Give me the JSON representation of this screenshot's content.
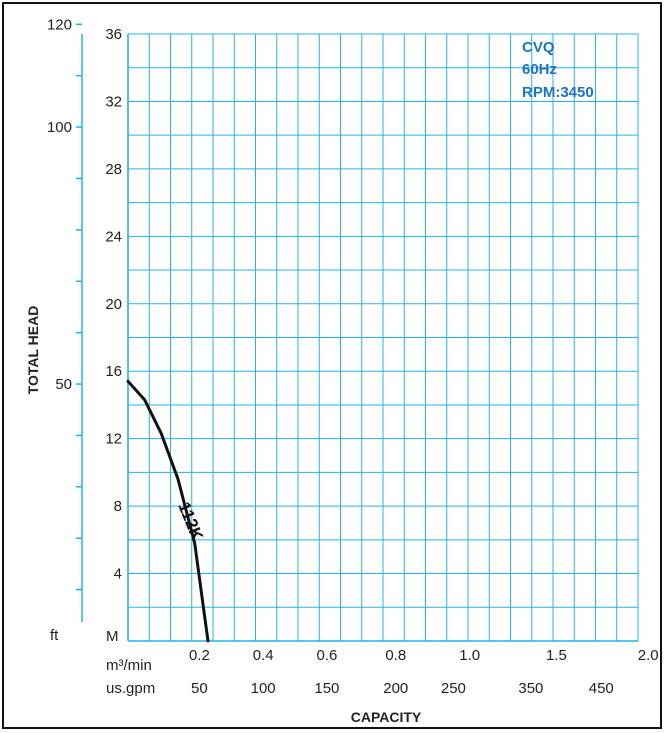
{
  "chart_data": {
    "type": "line",
    "info": {
      "model": "CVQ",
      "frequency": "60Hz",
      "rpm": "RPM:3450",
      "color": "#1a73c8"
    },
    "grid_color": "#23b3e8",
    "grid": true,
    "ylabel": "TOTAL HEAD",
    "xlabel": "CAPACITY",
    "y_unit_m": "M",
    "y_unit_ft": "ft",
    "x_unit_m3": "m³/min",
    "x_unit_gpm": "us.gpm",
    "ylim_m": [
      0,
      36
    ],
    "y_ticks_m": [
      "4",
      "8",
      "12",
      "16",
      "20",
      "24",
      "28",
      "32",
      "36"
    ],
    "y_ticks_ft": [
      "50",
      "100",
      "120"
    ],
    "xlim_m3": [
      0,
      2.0
    ],
    "x_ticks_m3": [
      "0.2",
      "0.4",
      "0.6",
      "0.8",
      "1.0",
      "1.5",
      "2.0"
    ],
    "x_ticks_gpm": [
      "50",
      "100",
      "150",
      "200",
      "250",
      "350",
      "450"
    ],
    "series": [
      {
        "name": "112K",
        "color": "#111111",
        "x": [
          0.0,
          0.05,
          0.1,
          0.15,
          0.2,
          0.24
        ],
        "y": [
          15.4,
          14.3,
          12.3,
          9.6,
          5.8,
          0.0
        ]
      }
    ]
  }
}
